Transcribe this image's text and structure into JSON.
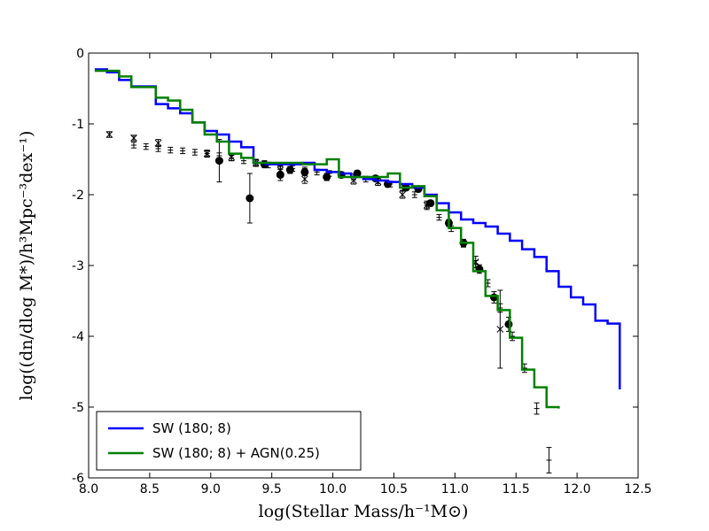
{
  "chart_data": {
    "type": "line",
    "title": "",
    "xlabel": "log(Stellar Mass/h⁻¹M⊙)",
    "ylabel": "log((dn/dlog M*)/h³Mpc⁻³dex⁻¹)",
    "xlim": [
      8.0,
      12.5
    ],
    "ylim": [
      -6,
      0
    ],
    "xticks": [
      "8.0",
      "8.5",
      "9.0",
      "9.5",
      "10.0",
      "10.5",
      "11.0",
      "11.5",
      "12.0",
      "12.5"
    ],
    "yticks": [
      "0",
      "-1",
      "-2",
      "-3",
      "-4",
      "-5",
      "-6"
    ],
    "grid": false,
    "legend_position": "lower-left",
    "series": [
      {
        "name": "SW (180; 8)",
        "color": "#0000ff",
        "style": "steps",
        "x": [
          8.05,
          8.15,
          8.25,
          8.35,
          8.45,
          8.55,
          8.65,
          8.75,
          8.85,
          8.95,
          9.05,
          9.15,
          9.25,
          9.35,
          9.45,
          9.55,
          9.65,
          9.75,
          9.85,
          9.95,
          10.05,
          10.15,
          10.25,
          10.35,
          10.45,
          10.55,
          10.65,
          10.75,
          10.85,
          10.95,
          11.05,
          11.15,
          11.25,
          11.35,
          11.45,
          11.55,
          11.65,
          11.75,
          11.85,
          11.95,
          12.05,
          12.15,
          12.25,
          12.35
        ],
        "y": [
          -0.23,
          -0.27,
          -0.38,
          -0.47,
          -0.47,
          -0.72,
          -0.78,
          -0.85,
          -0.98,
          -1.1,
          -1.15,
          -1.25,
          -1.33,
          -1.55,
          -1.57,
          -1.57,
          -1.57,
          -1.55,
          -1.65,
          -1.68,
          -1.7,
          -1.75,
          -1.78,
          -1.8,
          -1.82,
          -1.85,
          -1.9,
          -2.0,
          -2.12,
          -2.25,
          -2.35,
          -2.4,
          -2.45,
          -2.55,
          -2.65,
          -2.77,
          -2.88,
          -3.08,
          -3.3,
          -3.45,
          -3.55,
          -3.78,
          -3.82,
          -4.17
        ],
        "x_end": 12.35,
        "y_end": -4.75
      },
      {
        "name": "SW (180; 8) + AGN(0.25)",
        "color": "#008000",
        "style": "steps",
        "x": [
          8.05,
          8.15,
          8.25,
          8.35,
          8.45,
          8.55,
          8.65,
          8.75,
          8.85,
          8.95,
          9.05,
          9.15,
          9.25,
          9.35,
          9.45,
          9.55,
          9.65,
          9.75,
          9.85,
          9.95,
          10.05,
          10.15,
          10.25,
          10.35,
          10.45,
          10.55,
          10.65,
          10.75,
          10.85,
          10.95,
          11.05,
          11.15,
          11.25,
          11.35,
          11.45,
          11.55,
          11.65,
          11.75
        ],
        "y": [
          -0.25,
          -0.25,
          -0.33,
          -0.48,
          -0.48,
          -0.63,
          -0.67,
          -0.8,
          -0.98,
          -1.15,
          -1.25,
          -1.42,
          -1.48,
          -1.55,
          -1.55,
          -1.55,
          -1.55,
          -1.57,
          -1.57,
          -1.5,
          -1.75,
          -1.75,
          -1.75,
          -1.75,
          -1.7,
          -1.9,
          -1.88,
          -2.02,
          -2.22,
          -2.47,
          -2.68,
          -3.08,
          -3.43,
          -3.63,
          -4.02,
          -4.47,
          -4.72,
          -5.0
        ],
        "x_end": 11.85,
        "y_end": -5.02
      },
      {
        "name": "",
        "style": "points",
        "marker": "circle",
        "x": [
          9.07,
          9.32,
          9.44,
          9.57,
          9.65,
          9.77,
          9.95,
          10.07,
          10.2,
          10.35,
          10.45,
          10.6,
          10.7,
          10.8,
          10.95,
          11.07,
          11.2,
          11.32,
          11.44
        ],
        "y": [
          -1.52,
          -2.05,
          -1.57,
          -1.72,
          -1.65,
          -1.68,
          -1.75,
          -1.72,
          -1.7,
          -1.77,
          -1.85,
          -1.9,
          -1.92,
          -2.12,
          -2.4,
          -2.68,
          -3.05,
          -3.45,
          -3.83
        ],
        "yerr": [
          0.3,
          0.35,
          0.05,
          0.08,
          0.05,
          0.05,
          0.05,
          0.04,
          0.04,
          0.04,
          0.04,
          0.04,
          0.04,
          0.04,
          0.05,
          0.05,
          0.06,
          0.08,
          0.1
        ]
      },
      {
        "name": "",
        "style": "points",
        "marker": "x",
        "x": [
          8.17,
          8.37,
          8.57,
          8.97,
          9.17,
          9.37,
          9.57,
          9.77,
          10.17,
          10.37,
          10.57,
          10.77,
          11.17,
          11.37
        ],
        "y": [
          -1.15,
          -1.2,
          -1.27,
          -1.42,
          -1.47,
          -1.55,
          -1.65,
          -1.78,
          -1.8,
          -1.82,
          -2.0,
          -2.15,
          -2.95,
          -3.9
        ],
        "yerr": [
          0.04,
          0.04,
          0.05,
          0.05,
          0.05,
          0.05,
          0.06,
          0.06,
          0.05,
          0.05,
          0.05,
          0.06,
          0.08,
          0.55
        ]
      },
      {
        "name": "",
        "style": "points",
        "marker": "plus",
        "x": [
          8.37,
          8.47,
          8.57,
          8.67,
          8.77,
          8.87,
          8.97,
          9.07,
          9.17,
          9.27,
          9.37,
          9.47,
          9.57,
          9.67,
          9.77,
          9.87,
          9.97,
          10.07,
          10.17,
          10.27,
          10.37,
          10.47,
          10.57,
          10.67,
          10.77,
          10.87,
          10.97,
          11.07,
          11.17,
          11.27,
          11.37,
          11.47,
          11.57,
          11.67,
          11.77
        ],
        "y": [
          -1.3,
          -1.32,
          -1.35,
          -1.37,
          -1.38,
          -1.4,
          -1.42,
          -1.45,
          -1.48,
          -1.52,
          -1.55,
          -1.58,
          -1.6,
          -1.63,
          -1.65,
          -1.68,
          -1.7,
          -1.72,
          -1.75,
          -1.78,
          -1.8,
          -1.85,
          -1.9,
          -2.0,
          -2.15,
          -2.32,
          -2.48,
          -2.7,
          -2.98,
          -3.25,
          -3.6,
          -4.0,
          -4.45,
          -5.02,
          -5.75
        ],
        "yerr": [
          0.04,
          0.04,
          0.04,
          0.04,
          0.04,
          0.04,
          0.04,
          0.04,
          0.04,
          0.04,
          0.04,
          0.04,
          0.04,
          0.04,
          0.04,
          0.04,
          0.04,
          0.04,
          0.04,
          0.04,
          0.04,
          0.04,
          0.04,
          0.04,
          0.04,
          0.04,
          0.04,
          0.04,
          0.05,
          0.05,
          0.06,
          0.06,
          0.06,
          0.08,
          0.18
        ]
      }
    ]
  }
}
